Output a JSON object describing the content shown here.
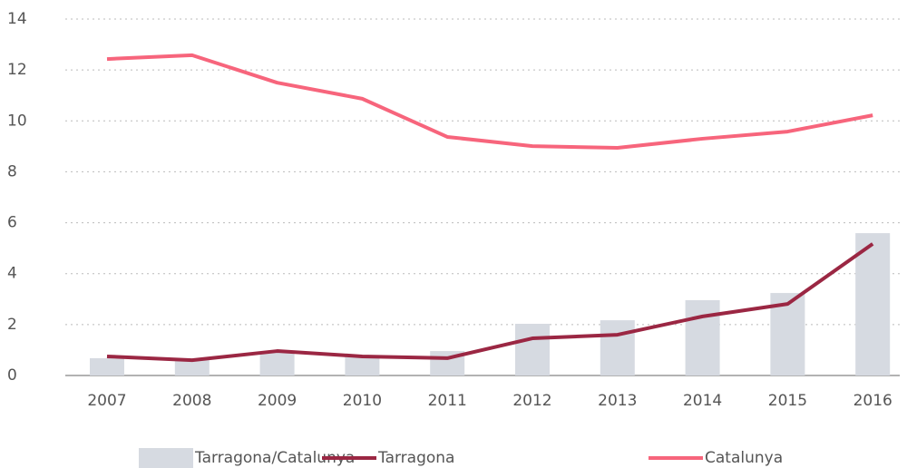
{
  "chart_data": {
    "type": "combo",
    "categories": [
      "2007",
      "2008",
      "2009",
      "2010",
      "2011",
      "2012",
      "2013",
      "2014",
      "2015",
      "2016"
    ],
    "series": [
      {
        "name": "Tarragona/Catalunya",
        "type": "bar",
        "color": "#d6dae1",
        "values": [
          0.68,
          0.6,
          0.93,
          0.78,
          0.96,
          2.03,
          2.17,
          2.96,
          3.24,
          5.59
        ]
      },
      {
        "name": "Tarragona",
        "type": "line",
        "color": "#9b2743",
        "values": [
          0.75,
          0.6,
          0.96,
          0.75,
          0.68,
          1.46,
          1.6,
          2.32,
          2.81,
          5.17
        ]
      },
      {
        "name": "Catalunya",
        "type": "line",
        "color": "#f7657c",
        "values": [
          12.43,
          12.58,
          11.5,
          10.87,
          9.37,
          9.01,
          8.94,
          9.3,
          9.58,
          10.22
        ]
      }
    ],
    "ylim": [
      0,
      14
    ],
    "yticks": [
      0,
      2,
      4,
      6,
      8,
      10,
      12,
      14
    ],
    "grid": true,
    "legend": "bottom"
  }
}
